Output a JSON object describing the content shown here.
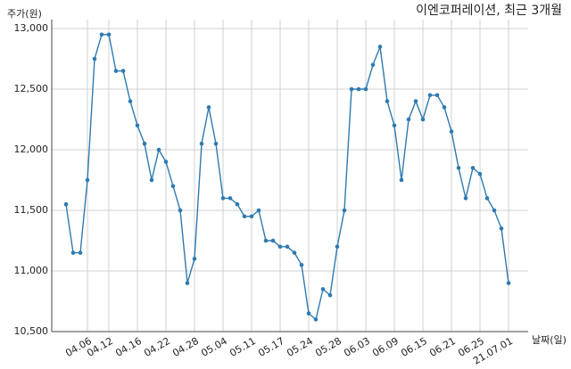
{
  "chart_data": {
    "type": "line",
    "title": "이엔코퍼레이션, 최근 3개월",
    "y_label": "주가(원)",
    "x_label": "날짜(일)",
    "categories": [
      null,
      null,
      null,
      "04.06",
      null,
      null,
      "04.12",
      null,
      null,
      null,
      "04.16",
      null,
      null,
      null,
      "04.22",
      null,
      null,
      null,
      "04.28",
      null,
      null,
      null,
      "05.04",
      null,
      null,
      null,
      "05.11",
      null,
      null,
      null,
      "05.17",
      null,
      null,
      null,
      "05.24",
      null,
      null,
      null,
      "05.28",
      null,
      null,
      null,
      "06.03",
      null,
      null,
      null,
      "06.09",
      null,
      null,
      null,
      "06.15",
      null,
      null,
      null,
      "06.21",
      null,
      null,
      null,
      "06.25",
      null,
      null,
      null,
      "21.07.01"
    ],
    "series": [
      {
        "name": "주가",
        "color": "#2e7ab0",
        "values": [
          11550,
          11150,
          11150,
          11750,
          12750,
          12950,
          12950,
          12650,
          12650,
          12400,
          12200,
          12050,
          11750,
          12000,
          11900,
          11700,
          11500,
          10900,
          11100,
          12050,
          12350,
          12050,
          11600,
          11600,
          11550,
          11450,
          11450,
          11500,
          11250,
          11250,
          11200,
          11200,
          11150,
          11050,
          10650,
          10600,
          10850,
          10800,
          11200,
          11500,
          12500,
          12500,
          12500,
          12700,
          12850,
          12400,
          12200,
          11750,
          12250,
          12400,
          12250,
          12450,
          12450,
          12350,
          12150,
          11850,
          11600,
          11850,
          11800,
          11600,
          11500,
          11350,
          10900
        ]
      }
    ],
    "ylim": [
      10500,
      13000
    ],
    "yticks": [
      {
        "value": 10500,
        "label": "10,500"
      },
      {
        "value": 11000,
        "label": "11,000"
      },
      {
        "value": 11500,
        "label": "11,500"
      },
      {
        "value": 12000,
        "label": "12,000"
      },
      {
        "value": 12500,
        "label": "12,500"
      },
      {
        "value": 13000,
        "label": "13,000"
      }
    ],
    "grid": true
  }
}
